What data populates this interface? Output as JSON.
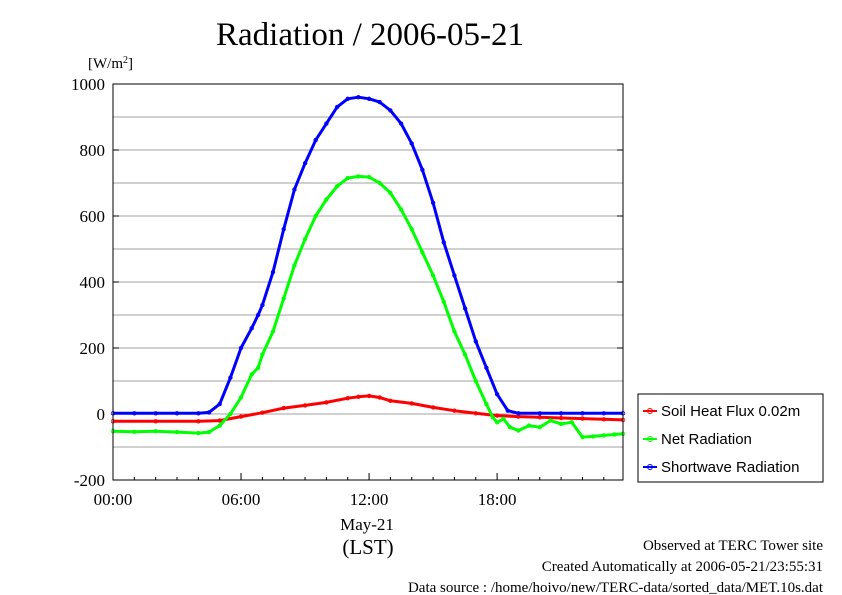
{
  "chart_data": {
    "type": "line",
    "title": "Radiation / 2006-05-21",
    "ylabel": "[W/m²]",
    "ylabel_base": "[W/m",
    "ylabel_sup": "2",
    "ylabel_end": "]",
    "xlabel": "(LST)",
    "date_label": "May-21",
    "xlim": [
      0,
      23.9
    ],
    "ylim": [
      -200,
      1000
    ],
    "x_ticks": [
      {
        "x": 0,
        "label": "00:00"
      },
      {
        "x": 6,
        "label": "06:00"
      },
      {
        "x": 12,
        "label": "12:00"
      },
      {
        "x": 18,
        "label": "18:00"
      }
    ],
    "y_ticks": [
      {
        "y": -200,
        "label": "-200"
      },
      {
        "y": 0,
        "label": "0"
      },
      {
        "y": 200,
        "label": "200"
      },
      {
        "y": 400,
        "label": "400"
      },
      {
        "y": 600,
        "label": "600"
      },
      {
        "y": 800,
        "label": "800"
      },
      {
        "y": 1000,
        "label": "1000"
      }
    ],
    "grid": true,
    "legend_position": "right",
    "series": [
      {
        "name": "Soil Heat Flux 0.02m",
        "color": "#ff0000",
        "x": [
          0,
          2,
          4,
          5,
          6,
          7,
          8,
          9,
          10,
          11,
          11.5,
          12,
          12.5,
          13,
          14,
          15,
          16,
          17,
          18,
          19,
          20,
          21,
          22,
          23,
          23.9
        ],
        "y": [
          -22,
          -22,
          -22,
          -20,
          -8,
          4,
          18,
          26,
          35,
          48,
          52,
          55,
          50,
          40,
          32,
          20,
          10,
          2,
          -5,
          -8,
          -10,
          -12,
          -14,
          -16,
          -18
        ]
      },
      {
        "name": "Net Radiation",
        "color": "#00ff00",
        "x": [
          0,
          1,
          2,
          3,
          4,
          4.5,
          5,
          5.5,
          6,
          6.5,
          6.8,
          7,
          7.5,
          8,
          8.5,
          9,
          9.5,
          10,
          10.5,
          11,
          11.5,
          12,
          12.5,
          13,
          13.5,
          14,
          14.5,
          15,
          15.5,
          16,
          16.5,
          17,
          17.5,
          17.8,
          18,
          18.3,
          18.6,
          19,
          19.5,
          20,
          20.5,
          21,
          21.5,
          22,
          22.5,
          23,
          23.5,
          23.9
        ],
        "y": [
          -52,
          -54,
          -52,
          -55,
          -58,
          -55,
          -35,
          0,
          50,
          120,
          140,
          180,
          250,
          350,
          450,
          530,
          600,
          650,
          690,
          715,
          720,
          718,
          700,
          670,
          620,
          560,
          490,
          420,
          340,
          250,
          180,
          100,
          30,
          -10,
          -25,
          -15,
          -40,
          -50,
          -35,
          -40,
          -20,
          -30,
          -25,
          -70,
          -68,
          -65,
          -62,
          -60
        ]
      },
      {
        "name": "Shortwave Radiation",
        "color": "#0000ff",
        "x": [
          0,
          1,
          2,
          3,
          4,
          4.5,
          5,
          5.5,
          6,
          6.5,
          6.8,
          7,
          7.5,
          8,
          8.5,
          9,
          9.5,
          10,
          10.5,
          11,
          11.5,
          12,
          12.5,
          13,
          13.5,
          14,
          14.5,
          15,
          15.5,
          16,
          16.5,
          17,
          17.5,
          18,
          18.5,
          19,
          20,
          21,
          22,
          23,
          23.9
        ],
        "y": [
          2,
          2,
          2,
          2,
          2,
          5,
          30,
          110,
          200,
          260,
          300,
          330,
          430,
          560,
          680,
          760,
          830,
          880,
          930,
          955,
          960,
          955,
          945,
          920,
          880,
          820,
          740,
          640,
          520,
          420,
          320,
          220,
          140,
          60,
          10,
          2,
          2,
          2,
          2,
          2,
          2
        ]
      }
    ]
  },
  "footer": {
    "line1": "Observed at TERC Tower site",
    "line2": "Created Automatically at 2006-05-21/23:55:31",
    "line3": "Data source : /home/hoivo/new/TERC-data/sorted_data/MET.10s.dat"
  }
}
